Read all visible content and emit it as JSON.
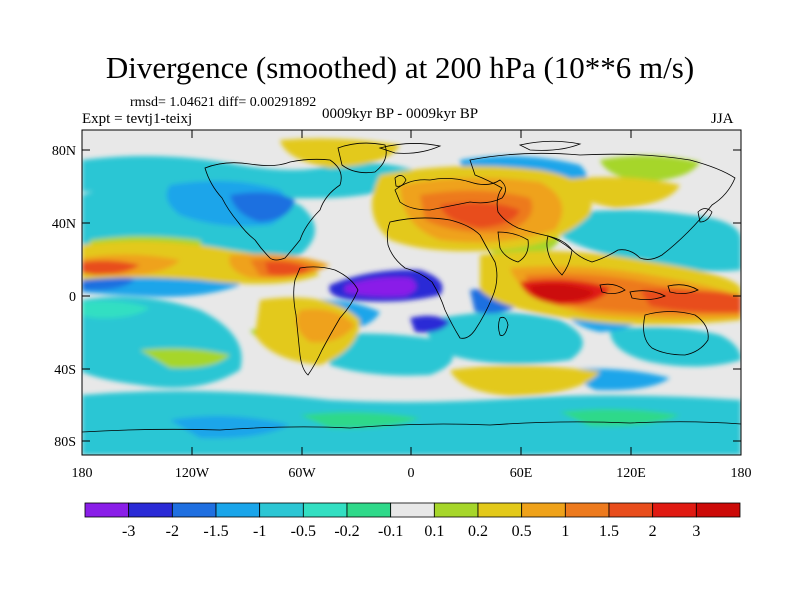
{
  "title": "Divergence (smoothed) at 200 hPa (10**6 m/s)",
  "stats": "rmsd= 1.04621 diff= 0.00291892",
  "experiment": "Expt = tevtj1-teixj",
  "period": "0009kyr BP - 0009kyr BP",
  "season": "JJA",
  "lat_labels": [
    "80N",
    "40N",
    "0",
    "40S",
    "80S"
  ],
  "lon_labels": [
    "180",
    "120W",
    "60W",
    "0",
    "60E",
    "120E",
    "180"
  ],
  "colorbar": {
    "labels": [
      "-3",
      "-2",
      "-1.5",
      "-1",
      "-0.5",
      "-0.2",
      "-0.1",
      "0.1",
      "0.2",
      "0.5",
      "1",
      "1.5",
      "2",
      "3"
    ],
    "colors": [
      "#8a1ee8",
      "#2a2ad6",
      "#1f6fe0",
      "#1aa5ea",
      "#2cc6d4",
      "#33dfc2",
      "#2fd98a",
      "#e8e8e8",
      "#a6d62a",
      "#e3c91a",
      "#efa21a",
      "#ed7a1e",
      "#e84d1c",
      "#e01a12",
      "#cc0a08"
    ]
  }
}
